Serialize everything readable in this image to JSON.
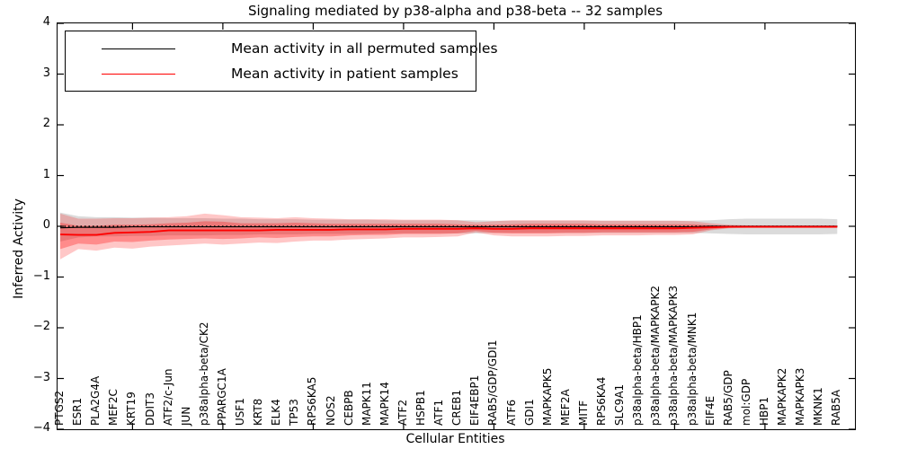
{
  "title": "Signaling mediated by p38-alpha and p38-beta -- 32 samples",
  "legend": [
    {
      "label": "Mean activity in all permuted samples",
      "color": "#000000"
    },
    {
      "label": "Mean activity in patient samples",
      "color": "#ff0000"
    }
  ],
  "axes": {
    "ylabel": "Inferred Activity",
    "xlabel": "Cellular Entities",
    "yticklabels": [
      "4",
      "3",
      "2",
      "1",
      "0",
      "−1",
      "−2",
      "−3",
      "−4"
    ],
    "ylim": [
      -4,
      4
    ]
  },
  "chart_data": {
    "type": "line",
    "title": "Signaling mediated by p38-alpha and p38-beta -- 32 samples",
    "xlabel": "Cellular Entities",
    "ylabel": "Inferred Activity",
    "ylim": [
      -4,
      4
    ],
    "grid": false,
    "legend_position": "upper-left",
    "zero_line_style": "dotted",
    "xticks_at": [
      5,
      10,
      15,
      20,
      25,
      30,
      35,
      40
    ],
    "categories": [
      "PTGS2",
      "ESR1",
      "PLA2G4A",
      "MEF2C",
      "KRT19",
      "DDIT3",
      "ATF2/c-Jun",
      "JUN",
      "p38alpha-beta/CK2",
      "PPARGC1A",
      "USF1",
      "KRT8",
      "ELK4",
      "TP53",
      "RPS6KA5",
      "NOS2",
      "CEBPB",
      "MAPK11",
      "MAPK14",
      "ATF2",
      "HSPB1",
      "ATF1",
      "CREB1",
      "EIF4EBP1",
      "RAB5/GDP/GDI1",
      "ATF6",
      "GDI1",
      "MAPKAPK5",
      "MEF2A",
      "MITF",
      "RPS6KA4",
      "SLC9A1",
      "p38alpha-beta/HBP1",
      "p38alpha-beta/MAPKAPK2",
      "p38alpha-beta/MAPKAPK3",
      "p38alpha-beta/MNK1",
      "EIF4E",
      "RAB5/GDP",
      "mol:GDP",
      "HBP1",
      "MAPKAPK2",
      "MAPKAPK3",
      "MKNK1",
      "RAB5A"
    ],
    "series": [
      {
        "name": "Mean activity in all permuted samples",
        "color": "#000000",
        "width": 1.2,
        "values": [
          -0.03,
          -0.02,
          -0.02,
          -0.02,
          -0.01,
          -0.01,
          -0.01,
          -0.01,
          -0.01,
          -0.01,
          -0.01,
          -0.01,
          -0.01,
          -0.01,
          -0.01,
          -0.01,
          -0.01,
          -0.01,
          -0.01,
          -0.01,
          -0.01,
          -0.01,
          -0.01,
          -0.01,
          -0.01,
          -0.01,
          -0.01,
          -0.01,
          -0.01,
          -0.01,
          -0.01,
          -0.01,
          -0.01,
          -0.01,
          -0.01,
          -0.01,
          0,
          0,
          0,
          0,
          0,
          0,
          0,
          0
        ]
      },
      {
        "name": "Mean activity in patient samples",
        "color": "#ff0000",
        "width": 1.9,
        "values": [
          -0.16,
          -0.17,
          -0.17,
          -0.13,
          -0.12,
          -0.11,
          -0.08,
          -0.08,
          -0.08,
          -0.08,
          -0.08,
          -0.08,
          -0.07,
          -0.07,
          -0.07,
          -0.07,
          -0.06,
          -0.06,
          -0.06,
          -0.05,
          -0.05,
          -0.05,
          -0.05,
          -0.04,
          -0.05,
          -0.05,
          -0.04,
          -0.04,
          -0.04,
          -0.04,
          -0.04,
          -0.04,
          -0.04,
          -0.04,
          -0.04,
          -0.03,
          -0.02,
          -0.01,
          -0.01,
          -0.01,
          -0.01,
          -0.01,
          -0.01,
          -0.01
        ]
      }
    ],
    "bands": [
      {
        "name": "permuted-samples-range",
        "color": "rgba(110,110,110,0.25)",
        "upper": [
          0.27,
          0.2,
          0.18,
          0.18,
          0.17,
          0.17,
          0.16,
          0.16,
          0.16,
          0.15,
          0.15,
          0.14,
          0.14,
          0.14,
          0.13,
          0.13,
          0.13,
          0.13,
          0.12,
          0.12,
          0.12,
          0.12,
          0.12,
          0.12,
          0.11,
          0.11,
          0.11,
          0.11,
          0.11,
          0.11,
          0.11,
          0.11,
          0.11,
          0.11,
          0.11,
          0.11,
          0.12,
          0.14,
          0.15,
          0.15,
          0.15,
          0.15,
          0.15,
          0.14
        ],
        "lower": [
          -0.3,
          -0.22,
          -0.2,
          -0.2,
          -0.19,
          -0.19,
          -0.18,
          -0.18,
          -0.18,
          -0.17,
          -0.17,
          -0.16,
          -0.16,
          -0.16,
          -0.15,
          -0.15,
          -0.15,
          -0.15,
          -0.14,
          -0.14,
          -0.14,
          -0.14,
          -0.14,
          -0.14,
          -0.13,
          -0.13,
          -0.13,
          -0.13,
          -0.13,
          -0.13,
          -0.13,
          -0.13,
          -0.13,
          -0.13,
          -0.13,
          -0.13,
          -0.14,
          -0.15,
          -0.16,
          -0.16,
          -0.16,
          -0.16,
          -0.16,
          -0.15
        ]
      },
      {
        "name": "patient-samples-outer-range",
        "color": "rgba(255,0,0,0.22)",
        "upper": [
          0.25,
          0.15,
          0.15,
          0.16,
          0.16,
          0.17,
          0.18,
          0.2,
          0.25,
          0.22,
          0.18,
          0.17,
          0.16,
          0.18,
          0.16,
          0.15,
          0.14,
          0.14,
          0.14,
          0.13,
          0.13,
          0.13,
          0.12,
          0.08,
          0.1,
          0.12,
          0.12,
          0.12,
          0.12,
          0.12,
          0.11,
          0.11,
          0.11,
          0.11,
          0.11,
          0.1,
          0.06,
          0.03,
          0.02,
          0.02,
          0.02,
          0.02,
          0.02,
          0.02
        ],
        "lower": [
          -0.65,
          -0.45,
          -0.48,
          -0.42,
          -0.44,
          -0.4,
          -0.38,
          -0.36,
          -0.34,
          -0.36,
          -0.34,
          -0.32,
          -0.33,
          -0.3,
          -0.28,
          -0.28,
          -0.26,
          -0.25,
          -0.24,
          -0.22,
          -0.22,
          -0.21,
          -0.2,
          -0.12,
          -0.18,
          -0.2,
          -0.2,
          -0.2,
          -0.19,
          -0.19,
          -0.18,
          -0.18,
          -0.18,
          -0.17,
          -0.17,
          -0.16,
          -0.08,
          -0.04,
          -0.03,
          -0.03,
          -0.03,
          -0.03,
          -0.03,
          -0.03
        ]
      },
      {
        "name": "patient-samples-inner-range",
        "color": "rgba(255,0,0,0.30)",
        "upper": [
          0.07,
          0.01,
          0.01,
          0.03,
          0.03,
          0.04,
          0.06,
          0.07,
          0.1,
          0.09,
          0.06,
          0.06,
          0.06,
          0.07,
          0.06,
          0.05,
          0.05,
          0.05,
          0.05,
          0.05,
          0.05,
          0.05,
          0.04,
          0.03,
          0.03,
          0.04,
          0.05,
          0.05,
          0.05,
          0.05,
          0.04,
          0.04,
          0.04,
          0.04,
          0.04,
          0.04,
          0.02,
          0.01,
          0.01,
          0.01,
          0.01,
          0.01,
          0.01,
          0.01
        ],
        "lower": [
          -0.45,
          -0.34,
          -0.36,
          -0.3,
          -0.31,
          -0.28,
          -0.26,
          -0.25,
          -0.24,
          -0.25,
          -0.24,
          -0.22,
          -0.23,
          -0.21,
          -0.2,
          -0.2,
          -0.18,
          -0.17,
          -0.17,
          -0.15,
          -0.15,
          -0.15,
          -0.14,
          -0.09,
          -0.13,
          -0.14,
          -0.14,
          -0.14,
          -0.13,
          -0.13,
          -0.12,
          -0.12,
          -0.12,
          -0.12,
          -0.12,
          -0.11,
          -0.06,
          -0.03,
          -0.02,
          -0.02,
          -0.02,
          -0.02,
          -0.02,
          -0.02
        ]
      }
    ]
  }
}
